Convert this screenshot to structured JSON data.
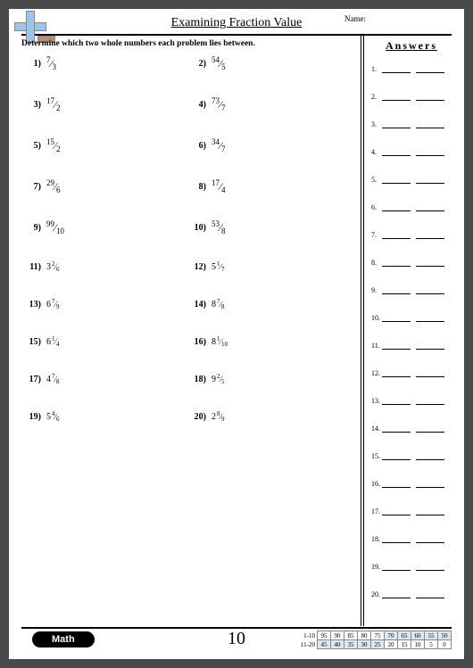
{
  "title": "Examining Fraction Value",
  "name_label": "Name:",
  "instruction": "Determine which two whole numbers each problem lies between.",
  "answers_heading": "Answers",
  "page_number": "10",
  "math_label": "Math",
  "problems": [
    {
      "num": "1)",
      "n": "7",
      "d": "3",
      "type": "frac"
    },
    {
      "num": "2)",
      "n": "54",
      "d": "5",
      "type": "frac"
    },
    {
      "num": "3)",
      "n": "17",
      "d": "2",
      "type": "frac"
    },
    {
      "num": "4)",
      "n": "73",
      "d": "7",
      "type": "frac"
    },
    {
      "num": "5)",
      "n": "15",
      "d": "2",
      "type": "frac"
    },
    {
      "num": "6)",
      "n": "34",
      "d": "7",
      "type": "frac"
    },
    {
      "num": "7)",
      "n": "29",
      "d": "6",
      "type": "frac"
    },
    {
      "num": "8)",
      "n": "17",
      "d": "4",
      "type": "frac"
    },
    {
      "num": "9)",
      "n": "99",
      "d": "10",
      "type": "frac"
    },
    {
      "num": "10)",
      "n": "53",
      "d": "8",
      "type": "frac"
    },
    {
      "num": "11)",
      "w": "3",
      "n": "2",
      "d": "6",
      "type": "mixed"
    },
    {
      "num": "12)",
      "w": "5",
      "n": "1",
      "d": "7",
      "type": "mixed"
    },
    {
      "num": "13)",
      "w": "6",
      "n": "7",
      "d": "9",
      "type": "mixed"
    },
    {
      "num": "14)",
      "w": "8",
      "n": "7",
      "d": "8",
      "type": "mixed"
    },
    {
      "num": "15)",
      "w": "6",
      "n": "1",
      "d": "4",
      "type": "mixed"
    },
    {
      "num": "16)",
      "w": "8",
      "n": "1",
      "d": "10",
      "type": "mixed"
    },
    {
      "num": "17)",
      "w": "4",
      "n": "7",
      "d": "8",
      "type": "mixed"
    },
    {
      "num": "18)",
      "w": "9",
      "n": "2",
      "d": "5",
      "type": "mixed"
    },
    {
      "num": "19)",
      "w": "5",
      "n": "4",
      "d": "6",
      "type": "mixed"
    },
    {
      "num": "20)",
      "w": "2",
      "n": "8",
      "d": "9",
      "type": "mixed"
    }
  ],
  "answer_count": 20,
  "score": {
    "row1_label": "1-10",
    "row2_label": "11-20",
    "row1": [
      "95",
      "90",
      "85",
      "80",
      "75",
      "70",
      "65",
      "60",
      "55",
      "50"
    ],
    "row2": [
      "45",
      "40",
      "35",
      "30",
      "25",
      "20",
      "15",
      "10",
      "5",
      "0"
    ]
  }
}
